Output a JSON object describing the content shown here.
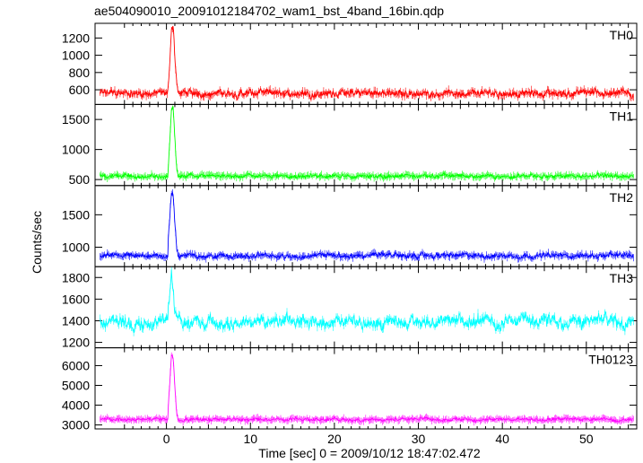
{
  "chart_data": {
    "type": "line",
    "title": "ae504090010_20091012184702_wam1_bst_4band_16bin.qdp",
    "xlabel": "Time [sec] 0 = 2009/10/12 18:47:02.472",
    "ylabel": "Counts/sec",
    "xlim": [
      -8.5,
      56
    ],
    "x_ticks": [
      0,
      10,
      20,
      30,
      40,
      50
    ],
    "grid": false,
    "series": [
      {
        "name": "TH0",
        "color": "#ff0000",
        "ylim": [
          430,
          1370
        ],
        "y_ticks": [
          600,
          800,
          1000,
          1200
        ],
        "burst_x": [
          0.2,
          0.6,
          0.8,
          1.0,
          1.2,
          1.4
        ],
        "burst_y": [
          600,
          1300,
          1350,
          1000,
          700,
          560
        ],
        "baseline": 560,
        "noise": 65
      },
      {
        "name": "TH1",
        "color": "#00ff00",
        "ylim": [
          400,
          1750
        ],
        "y_ticks": [
          500,
          1000,
          1500
        ],
        "burst_x": [
          0.2,
          0.6,
          0.8,
          1.0,
          1.2,
          1.4
        ],
        "burst_y": [
          650,
          1650,
          1700,
          1200,
          700,
          580
        ],
        "baseline": 560,
        "noise": 50
      },
      {
        "name": "TH2",
        "color": "#0000ff",
        "ylim": [
          700,
          1950
        ],
        "y_ticks": [
          1000,
          1500
        ],
        "burst_x": [
          0.2,
          0.6,
          0.8,
          1.0,
          1.2,
          1.4
        ],
        "burst_y": [
          1100,
          1850,
          1800,
          1400,
          1000,
          880
        ],
        "baseline": 870,
        "noise": 55
      },
      {
        "name": "TH3",
        "color": "#00ffff",
        "ylim": [
          1150,
          1900
        ],
        "y_ticks": [
          1200,
          1400,
          1600,
          1800
        ],
        "burst_x": [
          0.2,
          0.6,
          0.8,
          1.0,
          1.4
        ],
        "burst_y": [
          1500,
          1850,
          1700,
          1500,
          1400
        ],
        "baseline": 1390,
        "noise": 90
      },
      {
        "name": "TH0123",
        "color": "#ff00ff",
        "ylim": [
          2800,
          6900
        ],
        "y_ticks": [
          3000,
          4000,
          5000,
          6000
        ],
        "burst_x": [
          0.2,
          0.6,
          0.8,
          1.0,
          1.2,
          1.4
        ],
        "burst_y": [
          3800,
          6500,
          6400,
          5000,
          3600,
          3300
        ],
        "baseline": 3280,
        "noise": 120
      }
    ]
  }
}
